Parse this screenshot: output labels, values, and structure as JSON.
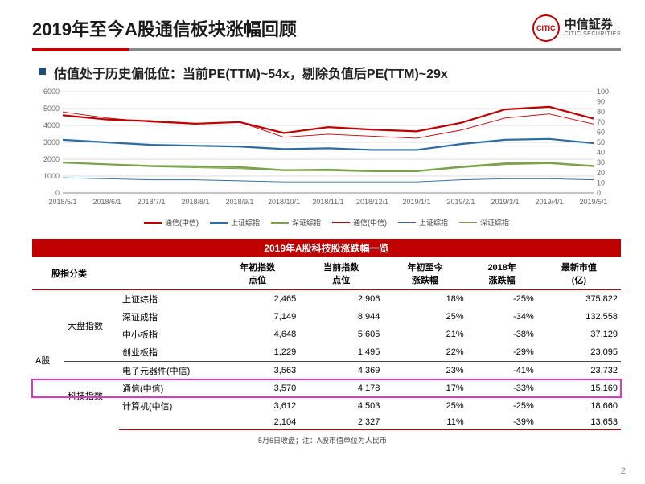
{
  "header": {
    "title": "2019年至今A股通信板块涨幅回顾",
    "logo_cn": "中信証券",
    "logo_en": "CITIC SECURITIES",
    "logo_mark": "CITIC"
  },
  "subtitle": "估值处于历史偏低位：当前PE(TTM)~54x，剔除负值后PE(TTM)~29x",
  "chart": {
    "type": "line",
    "x_categories": [
      "2018/5/1",
      "2018/6/1",
      "2018/7/1",
      "2018/8/1",
      "2018/9/1",
      "2018/10/1",
      "2018/11/1",
      "2018/12/1",
      "2019/1/1",
      "2019/2/1",
      "2019/3/1",
      "2019/4/1",
      "2019/5/1"
    ],
    "y_left": {
      "min": 0,
      "max": 6000,
      "step": 1000
    },
    "y_right": {
      "min": 0,
      "max": 100,
      "step": 10
    },
    "grid_color": "#dddddd",
    "axis_color": "#888888",
    "tick_fontsize": 9,
    "series": [
      {
        "name": "通信(中信)",
        "color": "#c00000",
        "width": 2.2,
        "axis": "left",
        "values": [
          4600,
          4350,
          4250,
          4100,
          4200,
          3550,
          3900,
          3750,
          3650,
          4150,
          4950,
          5100,
          4400
        ]
      },
      {
        "name": "上证综指",
        "color": "#2e6ca4",
        "width": 2.2,
        "axis": "left",
        "values": [
          3150,
          3000,
          2850,
          2800,
          2750,
          2600,
          2650,
          2550,
          2550,
          2900,
          3150,
          3200,
          2950
        ]
      },
      {
        "name": "深证综指",
        "color": "#7aa24a",
        "width": 2.2,
        "axis": "left",
        "values": [
          1800,
          1700,
          1600,
          1580,
          1530,
          1350,
          1380,
          1300,
          1300,
          1550,
          1750,
          1780,
          1600
        ]
      },
      {
        "name": "通信(中信)",
        "color": "#c00000",
        "width": 0.9,
        "axis": "right",
        "values": [
          80,
          74,
          70,
          68,
          70,
          55,
          58,
          56,
          54,
          62,
          74,
          78,
          68
        ]
      },
      {
        "name": "上证综指",
        "color": "#2e6ca4",
        "width": 0.9,
        "axis": "right",
        "values": [
          15,
          14,
          13,
          13,
          12,
          11,
          11,
          11,
          11,
          13,
          14,
          14,
          13
        ]
      },
      {
        "name": "深证综指",
        "color": "#7aa24a",
        "width": 0.9,
        "axis": "right",
        "values": [
          30,
          28,
          26,
          25,
          24,
          22,
          22,
          21,
          21,
          25,
          28,
          29,
          26
        ]
      }
    ],
    "legend_labels": [
      "通信(中信)",
      "上证综指",
      "深证综指",
      "通信(中信)",
      "上证综指",
      "深证综指"
    ],
    "legend_widths": [
      2.2,
      2.2,
      2.2,
      0.9,
      0.9,
      0.9
    ],
    "legend_colors": [
      "#c00000",
      "#2e6ca4",
      "#7aa24a",
      "#c00000",
      "#2e6ca4",
      "#7aa24a"
    ]
  },
  "table": {
    "title": "2019年A股科技股涨跌幅一览",
    "columns": [
      "股指分类",
      "",
      "年初指数\n点位",
      "当前指数\n点位",
      "年初至今\n涨跌幅",
      "2018年\n涨跌幅",
      "最新市值\n(亿)"
    ],
    "cat_col_label": "A股",
    "groups": [
      {
        "label": "大盘指数",
        "rows": [
          [
            "上证综指",
            "2,465",
            "2,906",
            "18%",
            "-25%",
            "375,822"
          ],
          [
            "深证成指",
            "7,149",
            "8,944",
            "25%",
            "-34%",
            "132,558"
          ],
          [
            "中小板指",
            "4,648",
            "5,605",
            "21%",
            "-38%",
            "37,129"
          ],
          [
            "创业板指",
            "1,229",
            "1,495",
            "22%",
            "-29%",
            "23,095"
          ]
        ]
      },
      {
        "label": "科技指数",
        "rows": [
          [
            "电子元器件(中信)",
            "3,563",
            "4,369",
            "23%",
            "-41%",
            "23,732"
          ],
          [
            "通信(中信)",
            "3,570",
            "4,178",
            "17%",
            "-33%",
            "15,169"
          ],
          [
            "计算机(中信)",
            "3,612",
            "4,503",
            "25%",
            "-25%",
            "18,660"
          ],
          [
            "",
            "2,104",
            "2,327",
            "11%",
            "-39%",
            "13,653"
          ]
        ],
        "highlight_index": 1
      }
    ]
  },
  "footnote": "5月6日收盘；注：A股市值单位为人民币",
  "pagenum": "2"
}
